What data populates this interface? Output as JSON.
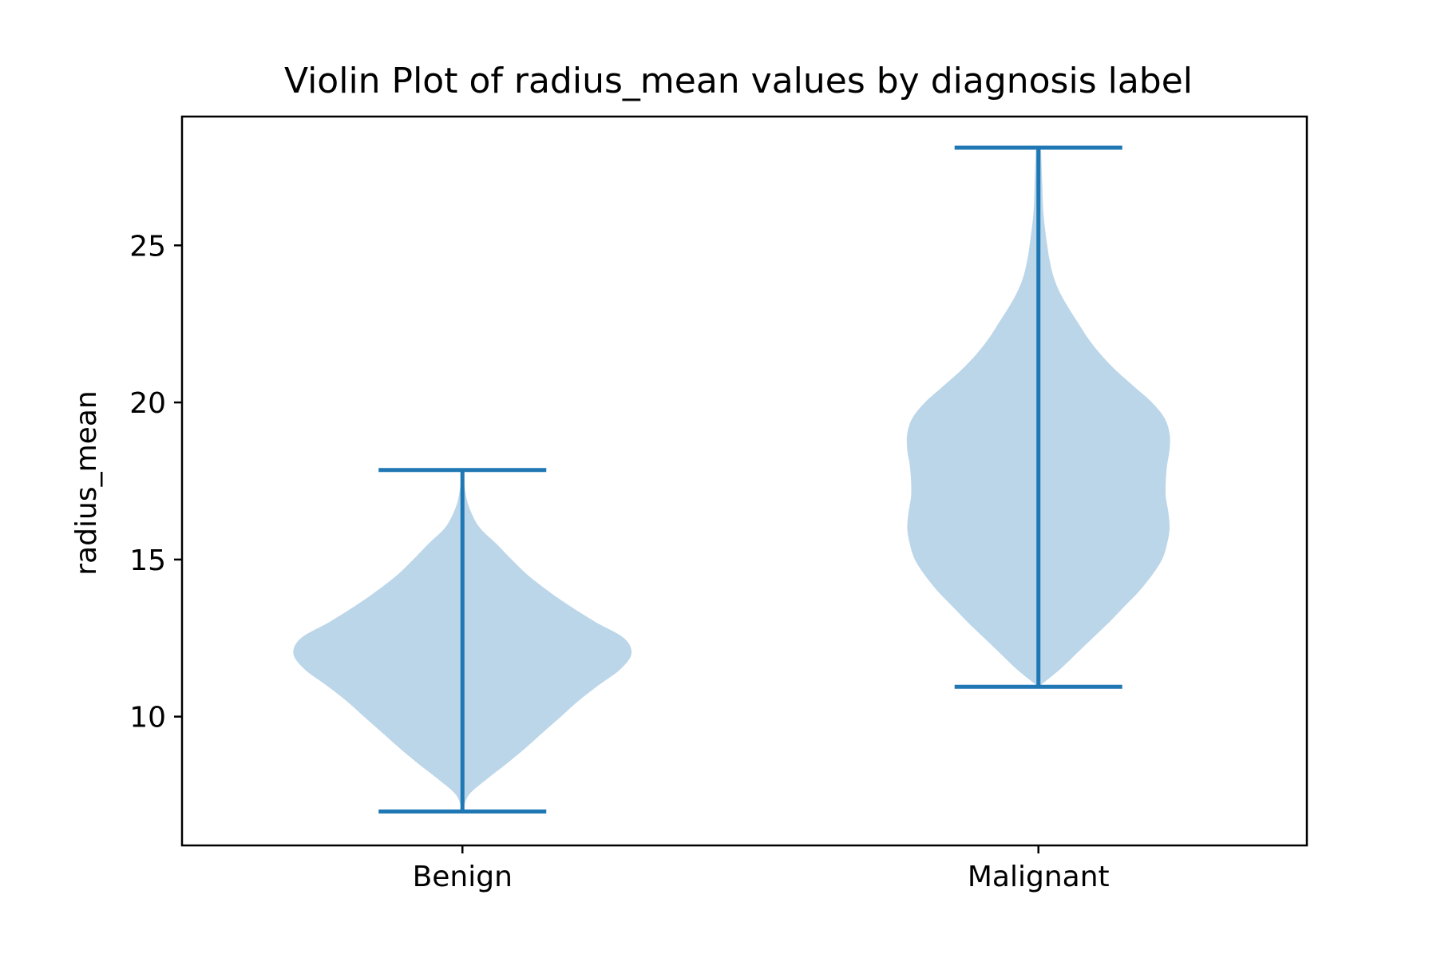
{
  "chart_data": {
    "type": "violin",
    "title": "Violin Plot of radius_mean values by diagnosis label",
    "xlabel": "",
    "ylabel": "radius_mean",
    "ylim": [
      5.9,
      29.1
    ],
    "yticks": [
      10,
      15,
      20,
      25
    ],
    "ytick_labels": [
      "10",
      "15",
      "20",
      "25"
    ],
    "grid": false,
    "colors": {
      "body": "#bcd6e9",
      "lines": "#1f77b4"
    },
    "violins": [
      {
        "name": "Benign",
        "min": 6.98,
        "max": 17.85,
        "profile": [
          [
            6.98,
            0.0
          ],
          [
            7.5,
            0.05
          ],
          [
            8.0,
            0.19
          ],
          [
            8.5,
            0.35
          ],
          [
            9.0,
            0.5
          ],
          [
            9.5,
            0.64
          ],
          [
            10.0,
            0.78
          ],
          [
            10.5,
            0.92
          ],
          [
            11.0,
            1.08
          ],
          [
            11.5,
            1.25
          ],
          [
            12.0,
            1.34
          ],
          [
            12.5,
            1.28
          ],
          [
            13.0,
            1.06
          ],
          [
            13.5,
            0.86
          ],
          [
            14.0,
            0.68
          ],
          [
            14.5,
            0.52
          ],
          [
            15.0,
            0.39
          ],
          [
            15.5,
            0.27
          ],
          [
            16.0,
            0.14
          ],
          [
            16.5,
            0.07
          ],
          [
            17.0,
            0.03
          ],
          [
            17.85,
            0.0
          ]
        ]
      },
      {
        "name": "Malignant",
        "min": 10.95,
        "max": 28.11,
        "profile": [
          [
            10.95,
            0.0
          ],
          [
            11.5,
            0.17
          ],
          [
            12.0,
            0.3
          ],
          [
            12.5,
            0.43
          ],
          [
            13.0,
            0.56
          ],
          [
            13.5,
            0.68
          ],
          [
            14.0,
            0.8
          ],
          [
            14.5,
            0.9
          ],
          [
            15.0,
            0.98
          ],
          [
            15.5,
            1.02
          ],
          [
            16.0,
            1.04
          ],
          [
            16.5,
            1.03
          ],
          [
            17.0,
            1.01
          ],
          [
            17.5,
            1.01
          ],
          [
            18.0,
            1.02
          ],
          [
            18.5,
            1.04
          ],
          [
            19.0,
            1.04
          ],
          [
            19.5,
            1.0
          ],
          [
            20.0,
            0.9
          ],
          [
            20.5,
            0.76
          ],
          [
            21.0,
            0.62
          ],
          [
            21.5,
            0.5
          ],
          [
            22.0,
            0.4
          ],
          [
            22.5,
            0.32
          ],
          [
            23.0,
            0.24
          ],
          [
            23.5,
            0.17
          ],
          [
            24.0,
            0.12
          ],
          [
            24.5,
            0.09
          ],
          [
            25.0,
            0.07
          ],
          [
            26.0,
            0.04
          ],
          [
            27.0,
            0.03
          ],
          [
            28.11,
            0.02
          ]
        ]
      }
    ]
  }
}
